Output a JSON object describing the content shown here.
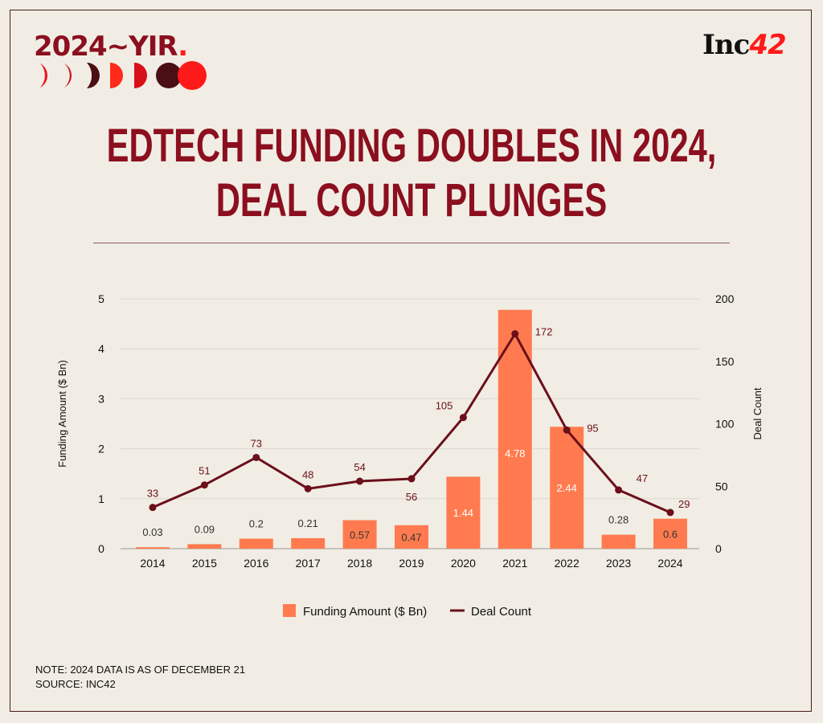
{
  "header": {
    "badge_text": "2024~YIR",
    "badge_dot": ".",
    "logo_text": "Inc",
    "logo_num": "42"
  },
  "title": {
    "line1": "EDTECH FUNDING DOUBLES IN 2024,",
    "line2": "DEAL COUNT PLUNGES"
  },
  "notes": {
    "note": "NOTE: 2024 DATA IS AS OF DECEMBER 21",
    "source": "SOURCE: INC42"
  },
  "colors": {
    "background": "#f1ede4",
    "bar": "#ff7b4f",
    "line": "#6b0f1a",
    "title": "#8b0f1f"
  },
  "chart_data": {
    "type": "bar+line",
    "categories": [
      "2014",
      "2015",
      "2016",
      "2017",
      "2018",
      "2019",
      "2020",
      "2021",
      "2022",
      "2023",
      "2024"
    ],
    "series": [
      {
        "name": "Funding Amount ($ Bn)",
        "type": "bar",
        "axis": "left",
        "values": [
          0.03,
          0.09,
          0.2,
          0.21,
          0.57,
          0.47,
          1.44,
          4.78,
          2.44,
          0.28,
          0.6
        ],
        "labels": [
          "0.03",
          "0.09",
          "0.2",
          "0.21",
          "0.57",
          "0.47",
          "1.44",
          "4.78",
          "2.44",
          "0.28",
          "0.6"
        ]
      },
      {
        "name": "Deal Count",
        "type": "line",
        "axis": "right",
        "values": [
          33,
          51,
          73,
          48,
          54,
          56,
          105,
          172,
          95,
          47,
          29
        ],
        "labels": [
          "33",
          "51",
          "73",
          "48",
          "54",
          "56",
          "105",
          "172",
          "95",
          "47",
          "29"
        ]
      }
    ],
    "ylabel": "Funding Amount ($ Bn)",
    "y2label": "Deal Count",
    "ylim": [
      0,
      5
    ],
    "y2lim": [
      0,
      200
    ],
    "yticks": [
      "0",
      "1",
      "2",
      "3",
      "4",
      "5"
    ],
    "y2ticks": [
      "0",
      "50",
      "100",
      "150",
      "200"
    ],
    "grid": true,
    "legend": "bottom"
  }
}
